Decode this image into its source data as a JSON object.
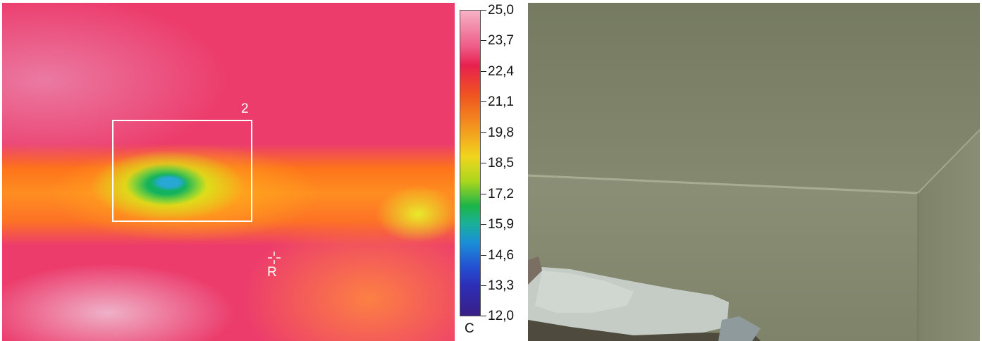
{
  "thermal_image": {
    "roi_label": "2",
    "reference_label": "R"
  },
  "scale": {
    "ticks": [
      "25,0",
      "23,7",
      "22,4",
      "21,1",
      "19,8",
      "18,5",
      "17,2",
      "15,9",
      "14,6",
      "13,3",
      "12,0"
    ],
    "unit": "C",
    "max": 25.0,
    "min": 12.0
  },
  "colors": {
    "thermal_background": "#ec3c6c",
    "cold_spot": "#27a7d3",
    "warm_band": "#ff9a1e",
    "photo_wall": "#7c8167"
  }
}
